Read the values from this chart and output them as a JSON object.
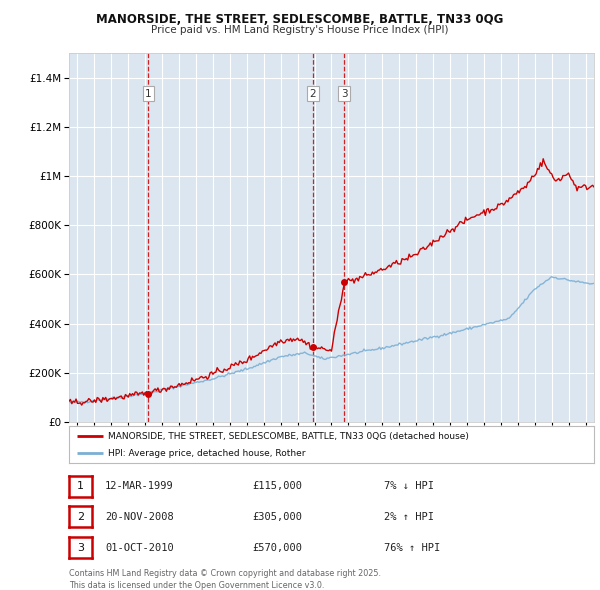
{
  "title": "MANORSIDE, THE STREET, SEDLESCOMBE, BATTLE, TN33 0QG",
  "subtitle": "Price paid vs. HM Land Registry's House Price Index (HPI)",
  "hpi_label": "HPI: Average price, detached house, Rother",
  "price_label": "MANORSIDE, THE STREET, SEDLESCOMBE, BATTLE, TN33 0QG (detached house)",
  "transactions": [
    {
      "num": 1,
      "date_x": 1999.19,
      "price": 115000,
      "label": "12-MAR-1999",
      "pct": "7% ↓ HPI"
    },
    {
      "num": 2,
      "date_x": 2008.89,
      "price": 305000,
      "label": "20-NOV-2008",
      "pct": "2% ↑ HPI"
    },
    {
      "num": 3,
      "date_x": 2010.75,
      "price": 570000,
      "label": "01-OCT-2010",
      "pct": "76% ↑ HPI"
    }
  ],
  "ylim": [
    0,
    1500000
  ],
  "xlim": [
    1994.5,
    2025.5
  ],
  "price_color": "#cc0000",
  "hpi_color": "#7bafd4",
  "vline_color": "#cc0000",
  "background_color": "#ffffff",
  "plot_bg": "#dce6f0",
  "grid_color": "#ffffff",
  "footer": "Contains HM Land Registry data © Crown copyright and database right 2025.\nThis data is licensed under the Open Government Licence v3.0.",
  "hpi_control_x": [
    1994.5,
    1995.5,
    1997.0,
    1999.0,
    2001.0,
    2003.0,
    2005.0,
    2007.0,
    2008.5,
    2009.5,
    2011.0,
    2013.0,
    2015.0,
    2017.0,
    2019.0,
    2020.5,
    2022.0,
    2023.0,
    2024.5,
    2025.5
  ],
  "hpi_control_y": [
    78000,
    82000,
    95000,
    115000,
    145000,
    175000,
    215000,
    265000,
    280000,
    255000,
    275000,
    300000,
    330000,
    360000,
    395000,
    420000,
    540000,
    590000,
    570000,
    560000
  ],
  "price_control_x": [
    1994.5,
    1995.5,
    1997.0,
    1999.0,
    2001.0,
    2003.0,
    2005.0,
    2007.0,
    2008.0,
    2008.89,
    2010.0,
    2010.75,
    2011.5,
    2013.0,
    2015.0,
    2017.0,
    2018.5,
    2020.0,
    2021.5,
    2022.5,
    2023.2,
    2024.0,
    2024.5,
    2025.5
  ],
  "price_control_y": [
    78000,
    82000,
    95000,
    115000,
    150000,
    195000,
    250000,
    330000,
    340000,
    305000,
    290000,
    570000,
    580000,
    620000,
    680000,
    780000,
    840000,
    880000,
    960000,
    1060000,
    980000,
    1010000,
    950000,
    960000
  ]
}
